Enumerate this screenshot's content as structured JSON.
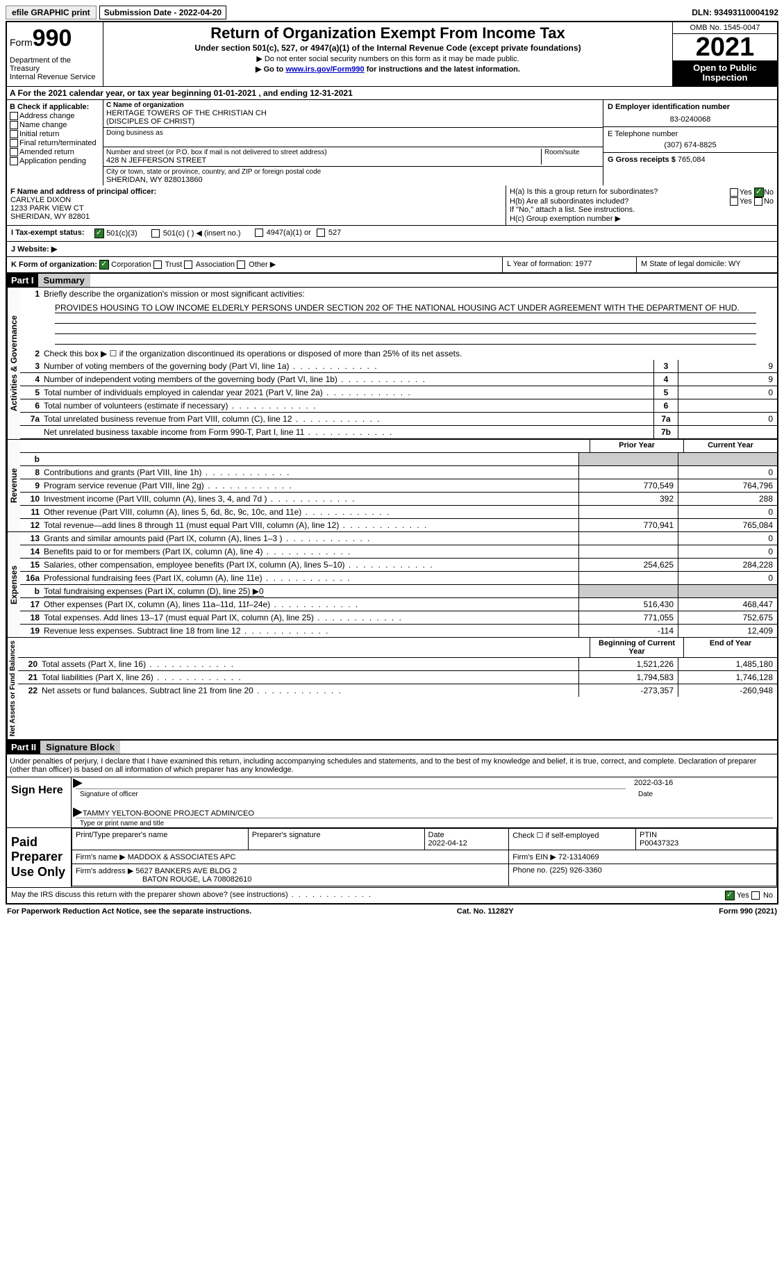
{
  "topbar": {
    "efile": "efile GRAPHIC print",
    "submission": "Submission Date - 2022-04-20",
    "dln": "DLN: 93493110004192"
  },
  "header": {
    "form_prefix": "Form",
    "form_number": "990",
    "dept": "Department of the Treasury",
    "irs": "Internal Revenue Service",
    "title": "Return of Organization Exempt From Income Tax",
    "subtitle": "Under section 501(c), 527, or 4947(a)(1) of the Internal Revenue Code (except private foundations)",
    "note1": "▶ Do not enter social security numbers on this form as it may be made public.",
    "note2_pre": "▶ Go to ",
    "note2_link": "www.irs.gov/Form990",
    "note2_post": " for instructions and the latest information.",
    "omb": "OMB No. 1545-0047",
    "year": "2021",
    "open_public": "Open to Public Inspection"
  },
  "rowA": {
    "text": "A For the 2021 calendar year, or tax year beginning 01-01-2021    , and ending 12-31-2021"
  },
  "colB": {
    "label": "B Check if applicable:",
    "opts": [
      "Address change",
      "Name change",
      "Initial return",
      "Final return/terminated",
      "Amended return",
      "Application pending"
    ]
  },
  "colC": {
    "name_label": "C Name of organization",
    "name": "HERITAGE TOWERS OF THE CHRISTIAN CH",
    "name2": "(DISCIPLES OF CHRIST)",
    "dba_label": "Doing business as",
    "addr_label": "Number and street (or P.O. box if mail is not delivered to street address)",
    "room_label": "Room/suite",
    "addr": "428 N JEFFERSON STREET",
    "city_label": "City or town, state or province, country, and ZIP or foreign postal code",
    "city": "SHERIDAN, WY  828013860"
  },
  "colD": {
    "ein_label": "D Employer identification number",
    "ein": "83-0240068",
    "phone_label": "E Telephone number",
    "phone": "(307) 674-8825",
    "gross_label": "G Gross receipts $ ",
    "gross": "765,084"
  },
  "rowF": {
    "label": "F Name and address of principal officer:",
    "name": "CARLYLE DIXON",
    "addr1": "1233 PARK VIEW CT",
    "addr2": "SHERIDAN, WY  82801"
  },
  "rowH": {
    "ha": "H(a)  Is this a group return for subordinates?",
    "hb": "H(b)  Are all subordinates included?",
    "hb_note": "If \"No,\" attach a list. See instructions.",
    "hc": "H(c)  Group exemption number ▶",
    "yes": "Yes",
    "no": "No"
  },
  "rowI": {
    "label": "I Tax-exempt status:",
    "c3": "501(c)(3)",
    "c": "501(c) (   ) ◀ (insert no.)",
    "a1": "4947(a)(1) or",
    "s527": "527"
  },
  "rowJ": {
    "label": "J   Website: ▶"
  },
  "rowK": {
    "label": "K Form of organization:",
    "corp": "Corporation",
    "trust": "Trust",
    "assoc": "Association",
    "other": "Other ▶",
    "L": "L Year of formation: 1977",
    "M": "M State of legal domicile: WY"
  },
  "part1": {
    "label": "Part I",
    "title": "Summary"
  },
  "summary": {
    "side1": "Activities & Governance",
    "side2": "Revenue",
    "side3": "Expenses",
    "side4": "Net Assets or Fund Balances",
    "line1_label": "Briefly describe the organization's mission or most significant activities:",
    "mission": "PROVIDES HOUSING TO LOW INCOME ELDERLY PERSONS UNDER SECTION 202 OF THE NATIONAL HOUSING ACT UNDER AGREEMENT WITH THE DEPARTMENT OF HUD.",
    "line2": "Check this box ▶ ☐  if the organization discontinued its operations or disposed of more than 25% of its net assets.",
    "lines": [
      {
        "n": "3",
        "t": "Number of voting members of the governing body (Part VI, line 1a)",
        "box": "3",
        "v": "9"
      },
      {
        "n": "4",
        "t": "Number of independent voting members of the governing body (Part VI, line 1b)",
        "box": "4",
        "v": "9"
      },
      {
        "n": "5",
        "t": "Total number of individuals employed in calendar year 2021 (Part V, line 2a)",
        "box": "5",
        "v": "0"
      },
      {
        "n": "6",
        "t": "Total number of volunteers (estimate if necessary)",
        "box": "6",
        "v": ""
      },
      {
        "n": "7a",
        "t": "Total unrelated business revenue from Part VIII, column (C), line 12",
        "box": "7a",
        "v": "0"
      },
      {
        "n": "",
        "t": "Net unrelated business taxable income from Form 990-T, Part I, line 11",
        "box": "7b",
        "v": ""
      }
    ],
    "col_prior": "Prior Year",
    "col_current": "Current Year",
    "rev": [
      {
        "n": "b",
        "t": "",
        "p": "",
        "c": "",
        "grey": true
      },
      {
        "n": "8",
        "t": "Contributions and grants (Part VIII, line 1h)",
        "p": "",
        "c": "0"
      },
      {
        "n": "9",
        "t": "Program service revenue (Part VIII, line 2g)",
        "p": "770,549",
        "c": "764,796"
      },
      {
        "n": "10",
        "t": "Investment income (Part VIII, column (A), lines 3, 4, and 7d )",
        "p": "392",
        "c": "288"
      },
      {
        "n": "11",
        "t": "Other revenue (Part VIII, column (A), lines 5, 6d, 8c, 9c, 10c, and 11e)",
        "p": "",
        "c": "0"
      },
      {
        "n": "12",
        "t": "Total revenue—add lines 8 through 11 (must equal Part VIII, column (A), line 12)",
        "p": "770,941",
        "c": "765,084"
      }
    ],
    "exp": [
      {
        "n": "13",
        "t": "Grants and similar amounts paid (Part IX, column (A), lines 1–3 )",
        "p": "",
        "c": "0"
      },
      {
        "n": "14",
        "t": "Benefits paid to or for members (Part IX, column (A), line 4)",
        "p": "",
        "c": "0"
      },
      {
        "n": "15",
        "t": "Salaries, other compensation, employee benefits (Part IX, column (A), lines 5–10)",
        "p": "254,625",
        "c": "284,228"
      },
      {
        "n": "16a",
        "t": "Professional fundraising fees (Part IX, column (A), line 11e)",
        "p": "",
        "c": "0"
      },
      {
        "n": "b",
        "t": "Total fundraising expenses (Part IX, column (D), line 25) ▶0",
        "p": "",
        "c": "",
        "grey": true,
        "ul": true
      },
      {
        "n": "17",
        "t": "Other expenses (Part IX, column (A), lines 11a–11d, 11f–24e)",
        "p": "516,430",
        "c": "468,447"
      },
      {
        "n": "18",
        "t": "Total expenses. Add lines 13–17 (must equal Part IX, column (A), line 25)",
        "p": "771,055",
        "c": "752,675"
      },
      {
        "n": "19",
        "t": "Revenue less expenses. Subtract line 18 from line 12",
        "p": "-114",
        "c": "12,409"
      }
    ],
    "col_begin": "Beginning of Current Year",
    "col_end": "End of Year",
    "net": [
      {
        "n": "20",
        "t": "Total assets (Part X, line 16)",
        "p": "1,521,226",
        "c": "1,485,180"
      },
      {
        "n": "21",
        "t": "Total liabilities (Part X, line 26)",
        "p": "1,794,583",
        "c": "1,746,128"
      },
      {
        "n": "22",
        "t": "Net assets or fund balances. Subtract line 21 from line 20",
        "p": "-273,357",
        "c": "-260,948"
      }
    ]
  },
  "part2": {
    "label": "Part II",
    "title": "Signature Block"
  },
  "sig": {
    "decl": "Under penalties of perjury, I declare that I have examined this return, including accompanying schedules and statements, and to the best of my knowledge and belief, it is true, correct, and complete. Declaration of preparer (other than officer) is based on all information of which preparer has any knowledge.",
    "sign_here": "Sign Here",
    "sig_officer": "Signature of officer",
    "sig_date": "2022-03-16",
    "date_label": "Date",
    "name_title": "TAMMY YELTON-BOONE  PROJECT ADMIN/CEO",
    "name_title_label": "Type or print name and title",
    "paid": "Paid Preparer Use Only",
    "h_name": "Print/Type preparer's name",
    "h_sig": "Preparer's signature",
    "h_date": "Date",
    "pdate": "2022-04-12",
    "self": "Check ☐ if self-employed",
    "ptin_label": "PTIN",
    "ptin": "P00437323",
    "firm_name_l": "Firm's name      ▶",
    "firm_name": "MADDOX & ASSOCIATES APC",
    "firm_ein_l": "Firm's EIN ▶",
    "firm_ein": "72-1314069",
    "firm_addr_l": "Firm's address ▶",
    "firm_addr1": "5627 BANKERS AVE BLDG 2",
    "firm_addr2": "BATON ROUGE, LA  708082610",
    "firm_phone_l": "Phone no.",
    "firm_phone": "(225) 926-3360",
    "discuss": "May the IRS discuss this return with the preparer shown above? (see instructions)"
  },
  "footer": {
    "left": "For Paperwork Reduction Act Notice, see the separate instructions.",
    "mid": "Cat. No. 11282Y",
    "right": "Form 990 (2021)"
  }
}
